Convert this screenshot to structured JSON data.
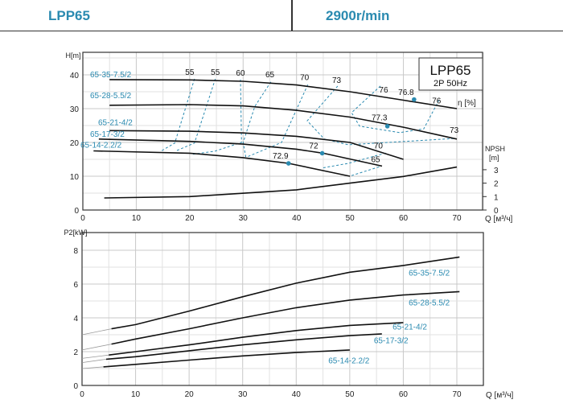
{
  "header": {
    "model": "LPP65",
    "speed": "2900r/min"
  },
  "colors": {
    "accent": "#2a8ab0",
    "curve": "#111111",
    "grid": "#d0d0d0"
  },
  "chart_data": [
    {
      "type": "line",
      "title": "LPP65",
      "subtitle": "2P  50Hz",
      "xlabel": "Q [м³/ч]",
      "ylabel": "H[m]",
      "y2label": [
        "NPSH",
        "[m]"
      ],
      "eta_label": "η [%]",
      "xlim": [
        0,
        70
      ],
      "ylim": [
        0,
        40
      ],
      "y2lim": [
        0,
        3
      ],
      "xticks": [
        "0",
        "10",
        "20",
        "30",
        "40",
        "50",
        "60",
        "70"
      ],
      "yticks": [
        "0",
        "10",
        "20",
        "30",
        "40"
      ],
      "y2ticks": [
        "0",
        "1",
        "2",
        "3"
      ],
      "series": [
        {
          "name": "65-35-7.5/2",
          "x": [
            5,
            20,
            30,
            40,
            50,
            60,
            70
          ],
          "y": [
            38.6,
            38.5,
            38.1,
            37,
            35,
            32.5,
            30
          ]
        },
        {
          "name": "65-28-5.5/2",
          "x": [
            5,
            20,
            30,
            40,
            50,
            60,
            70
          ],
          "y": [
            31,
            31.2,
            30.8,
            29.5,
            27.5,
            24.5,
            21
          ]
        },
        {
          "name": "65-21-4/2",
          "x": [
            5,
            20,
            30,
            40,
            50,
            60
          ],
          "y": [
            23.5,
            23.3,
            22.8,
            21.8,
            20,
            15
          ]
        },
        {
          "name": "65-17-3/2",
          "x": [
            3,
            20,
            30,
            40,
            45,
            56
          ],
          "y": [
            21,
            20.3,
            19.5,
            18,
            16.8,
            13
          ]
        },
        {
          "name": "65-14-2.2/2",
          "x": [
            2,
            20,
            30,
            38.5,
            50
          ],
          "y": [
            17.5,
            16.8,
            15.5,
            13.8,
            10
          ]
        }
      ],
      "npsh": {
        "x": [
          4,
          20,
          40,
          50,
          60,
          70
        ],
        "y": [
          0.9,
          1.0,
          1.5,
          2.0,
          2.5,
          3.2
        ]
      },
      "best_efficiency_points": [
        {
          "label": "72.9",
          "x": 38.5,
          "y": 13.8
        },
        {
          "label": "72",
          "x": 44.8,
          "y": 16.8
        },
        {
          "label": "77.3",
          "x": 57,
          "y": 24.8
        },
        {
          "label": "76.8",
          "x": 62,
          "y": 32.7
        }
      ],
      "efficiency_contours": [
        {
          "label": "55",
          "x": [
            20.9,
            17.2,
            14.6
          ],
          "y": [
            38.8,
            19.8,
            17.4
          ]
        },
        {
          "label": "55",
          "x": [
            24.8,
            20.9,
            17.3
          ],
          "y": [
            38.8,
            19.8,
            17.4
          ]
        },
        {
          "label": "60",
          "x": [
            29.5,
            29.7,
            24.7,
            20.5
          ],
          "y": [
            38.6,
            20,
            17.4,
            16.5
          ]
        },
        {
          "label": "65",
          "x": [
            35.2,
            32.2,
            30,
            30.5
          ],
          "y": [
            37.9,
            30.7,
            20,
            15.7
          ]
        },
        {
          "label": "70",
          "x": [
            42.1,
            37.2,
            30.7
          ],
          "y": [
            37.1,
            20,
            15.7
          ]
        },
        {
          "label": "73",
          "x": [
            47.7,
            42,
            45.2,
            49.7,
            69.8
          ],
          "y": [
            36.7,
            26.4,
            21,
            19.3,
            21.2
          ]
        },
        {
          "label": "76",
          "x": [
            55.7,
            50.3,
            51.8,
            59.3,
            63.8,
            66.8
          ],
          "y": [
            36.7,
            28.8,
            24.8,
            22.9,
            24,
            32.9
          ]
        },
        {
          "label": "70",
          "x": [
            45,
            49.7,
            56.8
          ],
          "y": [
            12.5,
            13.8,
            16.9
          ]
        },
        {
          "label": "65",
          "x": [
            50.3,
            55.7
          ],
          "y": [
            10.2,
            12.9
          ]
        }
      ],
      "contour_labels": [
        {
          "label": "55",
          "x": 20,
          "y": 40
        },
        {
          "label": "55",
          "x": 24.8,
          "y": 40
        },
        {
          "label": "60",
          "x": 29.5,
          "y": 39.8
        },
        {
          "label": "65",
          "x": 35,
          "y": 39.3
        },
        {
          "label": "70",
          "x": 41.5,
          "y": 38.5
        },
        {
          "label": "73",
          "x": 47.5,
          "y": 37.6
        },
        {
          "label": "76",
          "x": 56.3,
          "y": 34.8
        },
        {
          "label": "76",
          "x": 66.2,
          "y": 31.6
        },
        {
          "label": "73",
          "x": 69.5,
          "y": 22.8
        },
        {
          "label": "72",
          "x": 43.2,
          "y": 18.2
        },
        {
          "label": "70",
          "x": 55.3,
          "y": 18.2
        },
        {
          "label": "65",
          "x": 54.8,
          "y": 14.2
        },
        {
          "label": "72.9",
          "x": 37,
          "y": 15.2
        },
        {
          "label": "77.3",
          "x": 55.5,
          "y": 26.6
        },
        {
          "label": "76.8",
          "x": 60.5,
          "y": 34.1
        }
      ]
    },
    {
      "type": "line",
      "xlabel": "Q [м³/ч]",
      "ylabel": "P2[kW]",
      "xlim": [
        0,
        70
      ],
      "ylim": [
        0,
        8
      ],
      "xticks": [
        "0",
        "10",
        "20",
        "30",
        "40",
        "50",
        "60",
        "70"
      ],
      "yticks": [
        "0",
        "2",
        "4",
        "6",
        "8"
      ],
      "series": [
        {
          "name": "65-35-7.5/2",
          "x": [
            0,
            5.5,
            10,
            20,
            30,
            40,
            50,
            60,
            70.5
          ],
          "y": [
            3.0,
            3.35,
            3.6,
            4.4,
            5.25,
            6.05,
            6.7,
            7.1,
            7.6
          ]
        },
        {
          "name": "65-28-5.5/2",
          "x": [
            0,
            5.5,
            10,
            20,
            30,
            40,
            50,
            60,
            70.5
          ],
          "y": [
            2.1,
            2.45,
            2.75,
            3.35,
            4.0,
            4.6,
            5.05,
            5.35,
            5.55
          ]
        },
        {
          "name": "65-21-4/2",
          "x": [
            0,
            5,
            10,
            20,
            30,
            40,
            50,
            60
          ],
          "y": [
            1.6,
            1.8,
            2.0,
            2.4,
            2.85,
            3.25,
            3.55,
            3.72
          ]
        },
        {
          "name": "65-17-3/2",
          "x": [
            0,
            4.5,
            10,
            20,
            30,
            40,
            50,
            56
          ],
          "y": [
            1.35,
            1.55,
            1.7,
            2.05,
            2.4,
            2.7,
            2.95,
            3.05
          ]
        },
        {
          "name": "65-14-2.2/2",
          "x": [
            0,
            4,
            10,
            20,
            30,
            40,
            50
          ],
          "y": [
            1.0,
            1.1,
            1.25,
            1.5,
            1.75,
            1.95,
            2.1
          ]
        }
      ]
    }
  ]
}
